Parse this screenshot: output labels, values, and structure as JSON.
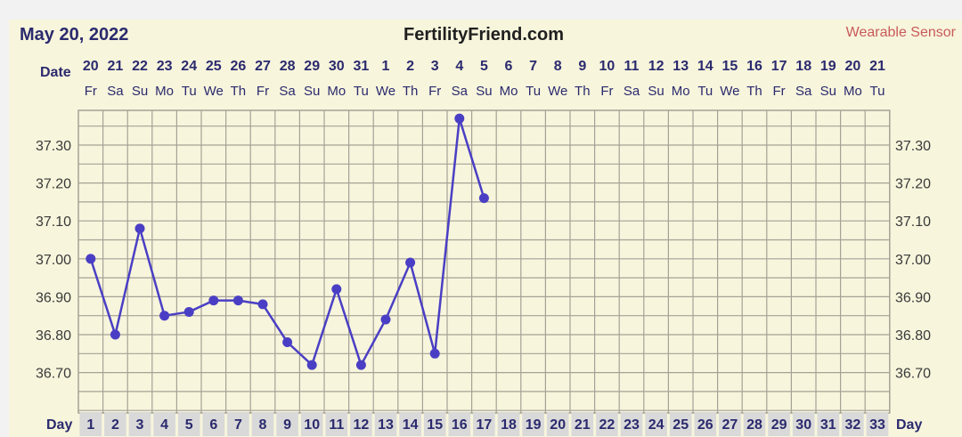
{
  "header": {
    "date": "May 20, 2022",
    "site": "FertilityFriend.com",
    "sensor_label": "Wearable Sensor"
  },
  "chart_data": {
    "type": "line",
    "row_labels": {
      "date": "Date",
      "day": "Day"
    },
    "dates": [
      "20",
      "21",
      "22",
      "23",
      "24",
      "25",
      "26",
      "27",
      "28",
      "29",
      "30",
      "31",
      "1",
      "2",
      "3",
      "4",
      "5",
      "6",
      "7",
      "8",
      "9",
      "10",
      "11",
      "12",
      "13",
      "14",
      "15",
      "16",
      "17",
      "18",
      "19",
      "20",
      "21"
    ],
    "weekdays": [
      "Fr",
      "Sa",
      "Su",
      "Mo",
      "Tu",
      "We",
      "Th",
      "Fr",
      "Sa",
      "Su",
      "Mo",
      "Tu",
      "We",
      "Th",
      "Fr",
      "Sa",
      "Su",
      "Mo",
      "Tu",
      "We",
      "Th",
      "Fr",
      "Sa",
      "Su",
      "Mo",
      "Tu",
      "We",
      "Th",
      "Fr",
      "Sa",
      "Su",
      "Mo",
      "Tu"
    ],
    "days": [
      "1",
      "2",
      "3",
      "4",
      "5",
      "6",
      "7",
      "8",
      "9",
      "10",
      "11",
      "12",
      "13",
      "14",
      "15",
      "16",
      "17",
      "18",
      "19",
      "20",
      "21",
      "22",
      "23",
      "24",
      "25",
      "26",
      "27",
      "28",
      "29",
      "30",
      "31",
      "32",
      "33"
    ],
    "y_ticks": [
      "37.30",
      "37.20",
      "37.10",
      "37.00",
      "36.90",
      "36.80",
      "36.70"
    ],
    "ylim": [
      36.6,
      37.4
    ],
    "grid": true,
    "series": [
      {
        "x": [
          1,
          2,
          3,
          4,
          5,
          6,
          7,
          8,
          9,
          10,
          11,
          12,
          13,
          14,
          15,
          16,
          17
        ],
        "values": [
          37.0,
          36.8,
          37.08,
          36.85,
          36.86,
          36.89,
          36.89,
          36.88,
          36.78,
          36.72,
          36.92,
          36.72,
          36.84,
          36.99,
          36.75,
          37.37,
          37.16
        ]
      }
    ],
    "colors": {
      "line": "#4a3fc4",
      "grid": "#a5a296",
      "plot_bg": "#f7f5dc",
      "day_cell": "#d9d9d9"
    }
  }
}
